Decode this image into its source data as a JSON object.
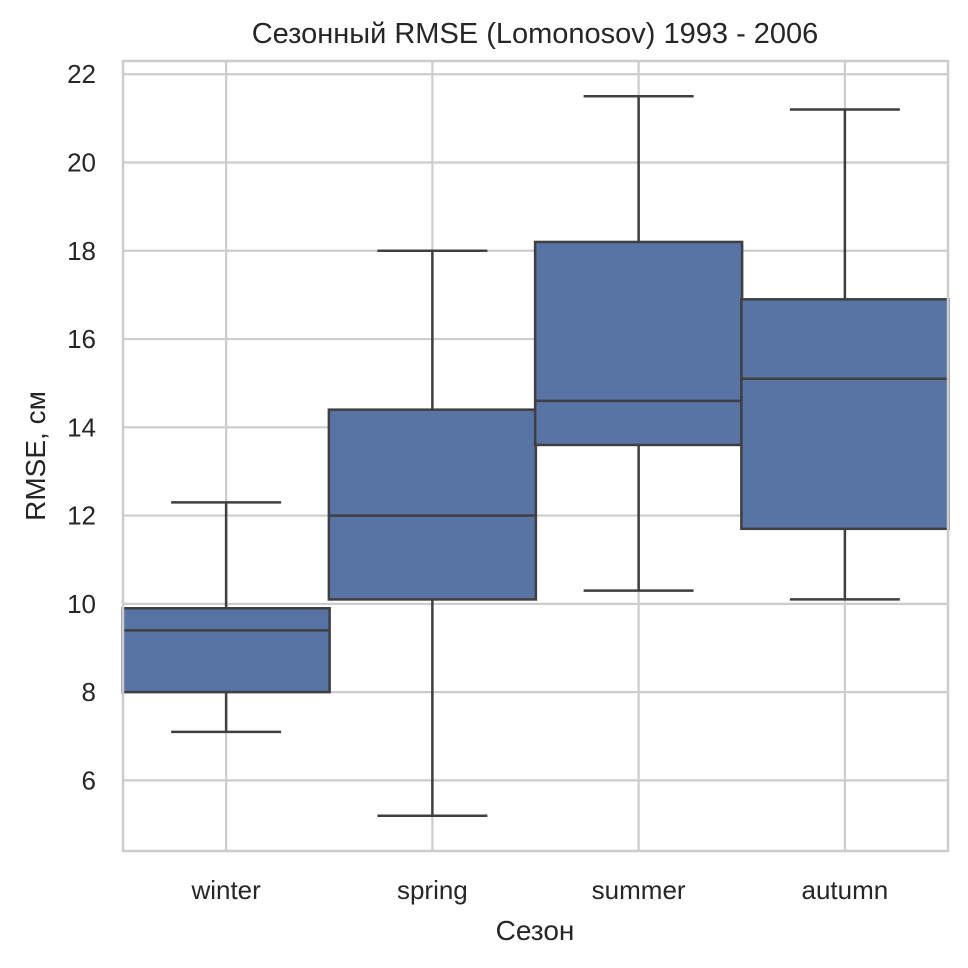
{
  "chart_data": {
    "type": "boxplot",
    "title": "Сезонный RMSE (Lomonosov) 1993 - 2006",
    "xlabel": "Сезон",
    "ylabel": "RMSE, см",
    "categories": [
      "winter",
      "spring",
      "summer",
      "autumn"
    ],
    "boxes": [
      {
        "category": "winter",
        "whisker_low": 7.1,
        "q1": 8.0,
        "median": 9.4,
        "q3": 9.9,
        "whisker_high": 12.3
      },
      {
        "category": "spring",
        "whisker_low": 5.2,
        "q1": 10.1,
        "median": 12.0,
        "q3": 14.4,
        "whisker_high": 18.0
      },
      {
        "category": "summer",
        "whisker_low": 10.3,
        "q1": 13.6,
        "median": 14.6,
        "q3": 18.2,
        "whisker_high": 21.5
      },
      {
        "category": "autumn",
        "whisker_low": 10.1,
        "q1": 11.7,
        "median": 15.1,
        "q3": 16.9,
        "whisker_high": 21.2
      }
    ],
    "yticks": [
      6,
      8,
      10,
      12,
      14,
      16,
      18,
      20,
      22
    ],
    "ylim": [
      4.4,
      22.3
    ],
    "grid": true,
    "box_color": "#5874a5",
    "line_color": "#3f3f3f",
    "grid_color": "#cccccc"
  }
}
